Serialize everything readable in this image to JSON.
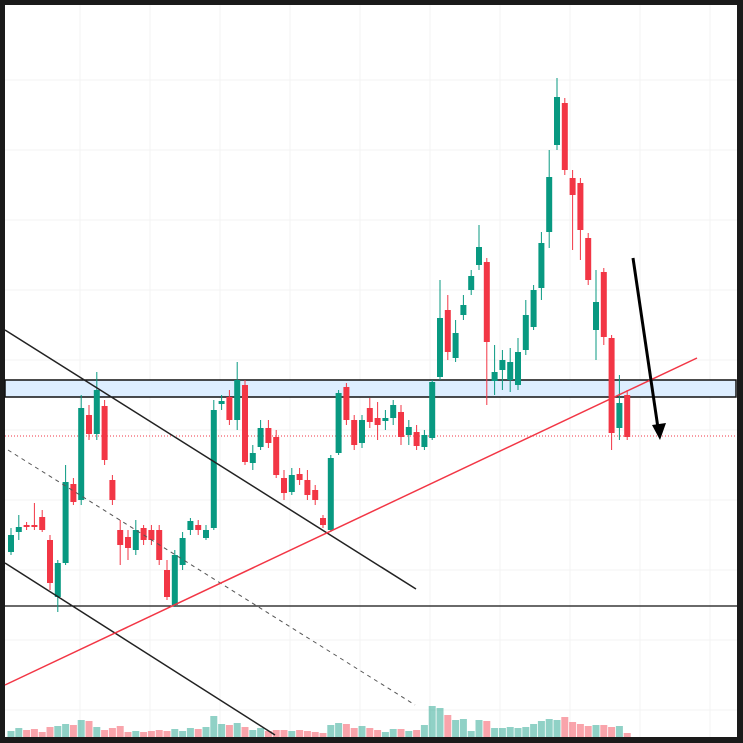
{
  "chart_data": {
    "type": "candlestick",
    "ylim": [
      0,
      732
    ],
    "up_color": "#089981",
    "down_color": "#f23645",
    "open": [
      185,
      205,
      212,
      212,
      220,
      197,
      140,
      174,
      253,
      237,
      322,
      303,
      331,
      257,
      207,
      200,
      187,
      209,
      207,
      207,
      167,
      132,
      172,
      207,
      212,
      199,
      209,
      333,
      340,
      317,
      352,
      274,
      290,
      309,
      300,
      259,
      245,
      263,
      257,
      247,
      219,
      207,
      284,
      350,
      317,
      294,
      329,
      319,
      316,
      319,
      325,
      302,
      305,
      290,
      299,
      360,
      427,
      379,
      422,
      447,
      472,
      475,
      356,
      367,
      357,
      352,
      387,
      410,
      449,
      505,
      592,
      634,
      559,
      554,
      499,
      407,
      465,
      399,
      309,
      342
    ],
    "high": [
      209,
      222,
      215,
      234,
      227,
      202,
      177,
      272,
      259,
      342,
      332,
      365,
      337,
      262,
      217,
      207,
      217,
      212,
      212,
      212,
      177,
      187,
      205,
      219,
      217,
      212,
      337,
      342,
      347,
      375,
      357,
      292,
      317,
      317,
      307,
      267,
      269,
      269,
      267,
      252,
      222,
      282,
      347,
      354,
      322,
      322,
      339,
      335,
      327,
      337,
      332,
      317,
      312,
      307,
      357,
      457,
      442,
      417,
      442,
      467,
      512,
      479,
      392,
      387,
      389,
      399,
      437,
      452,
      505,
      587,
      659,
      639,
      567,
      559,
      504,
      467,
      469,
      402,
      362,
      347
    ],
    "low": [
      182,
      197,
      207,
      207,
      205,
      147,
      125,
      172,
      232,
      232,
      297,
      297,
      272,
      232,
      172,
      177,
      182,
      192,
      192,
      172,
      137,
      130,
      167,
      202,
      202,
      197,
      207,
      327,
      312,
      307,
      272,
      267,
      287,
      289,
      259,
      237,
      242,
      252,
      237,
      232,
      209,
      205,
      282,
      312,
      287,
      289,
      309,
      297,
      307,
      312,
      292,
      292,
      287,
      287,
      297,
      357,
      377,
      375,
      417,
      442,
      467,
      332,
      342,
      347,
      345,
      347,
      382,
      407,
      437,
      489,
      587,
      562,
      487,
      477,
      452,
      377,
      392,
      287,
      297,
      297
    ],
    "close": [
      202,
      210,
      210,
      210,
      207,
      154,
      174,
      255,
      235,
      329,
      303,
      347,
      277,
      237,
      192,
      189,
      207,
      197,
      197,
      177,
      140,
      182,
      199,
      216,
      207,
      207,
      327,
      336,
      317,
      357,
      275,
      284,
      309,
      294,
      262,
      244,
      262,
      257,
      242,
      237,
      212,
      279,
      344,
      317,
      292,
      317,
      315,
      312,
      319,
      332,
      300,
      310,
      291,
      302,
      355,
      419,
      385,
      404,
      432,
      461,
      490,
      395,
      365,
      377,
      375,
      385,
      422,
      447,
      494,
      560,
      640,
      567,
      542,
      507,
      457,
      435,
      400,
      304,
      334,
      300
    ],
    "volume": [
      6,
      9,
      7,
      8,
      5,
      10,
      11,
      13,
      12,
      17,
      16,
      10,
      7,
      9,
      11,
      5,
      6,
      5,
      6,
      7,
      6,
      8,
      6,
      9,
      8,
      10,
      21,
      13,
      12,
      14,
      10,
      7,
      9,
      6,
      7,
      7,
      6,
      7,
      6,
      5,
      4,
      12,
      14,
      13,
      9,
      11,
      9,
      7,
      5,
      8,
      8,
      6,
      7,
      12,
      31,
      29,
      22,
      17,
      18,
      6,
      17,
      16,
      9,
      9,
      10,
      9,
      10,
      13,
      16,
      18,
      17,
      20,
      15,
      13,
      11,
      12,
      12,
      10,
      11,
      4
    ]
  }
}
